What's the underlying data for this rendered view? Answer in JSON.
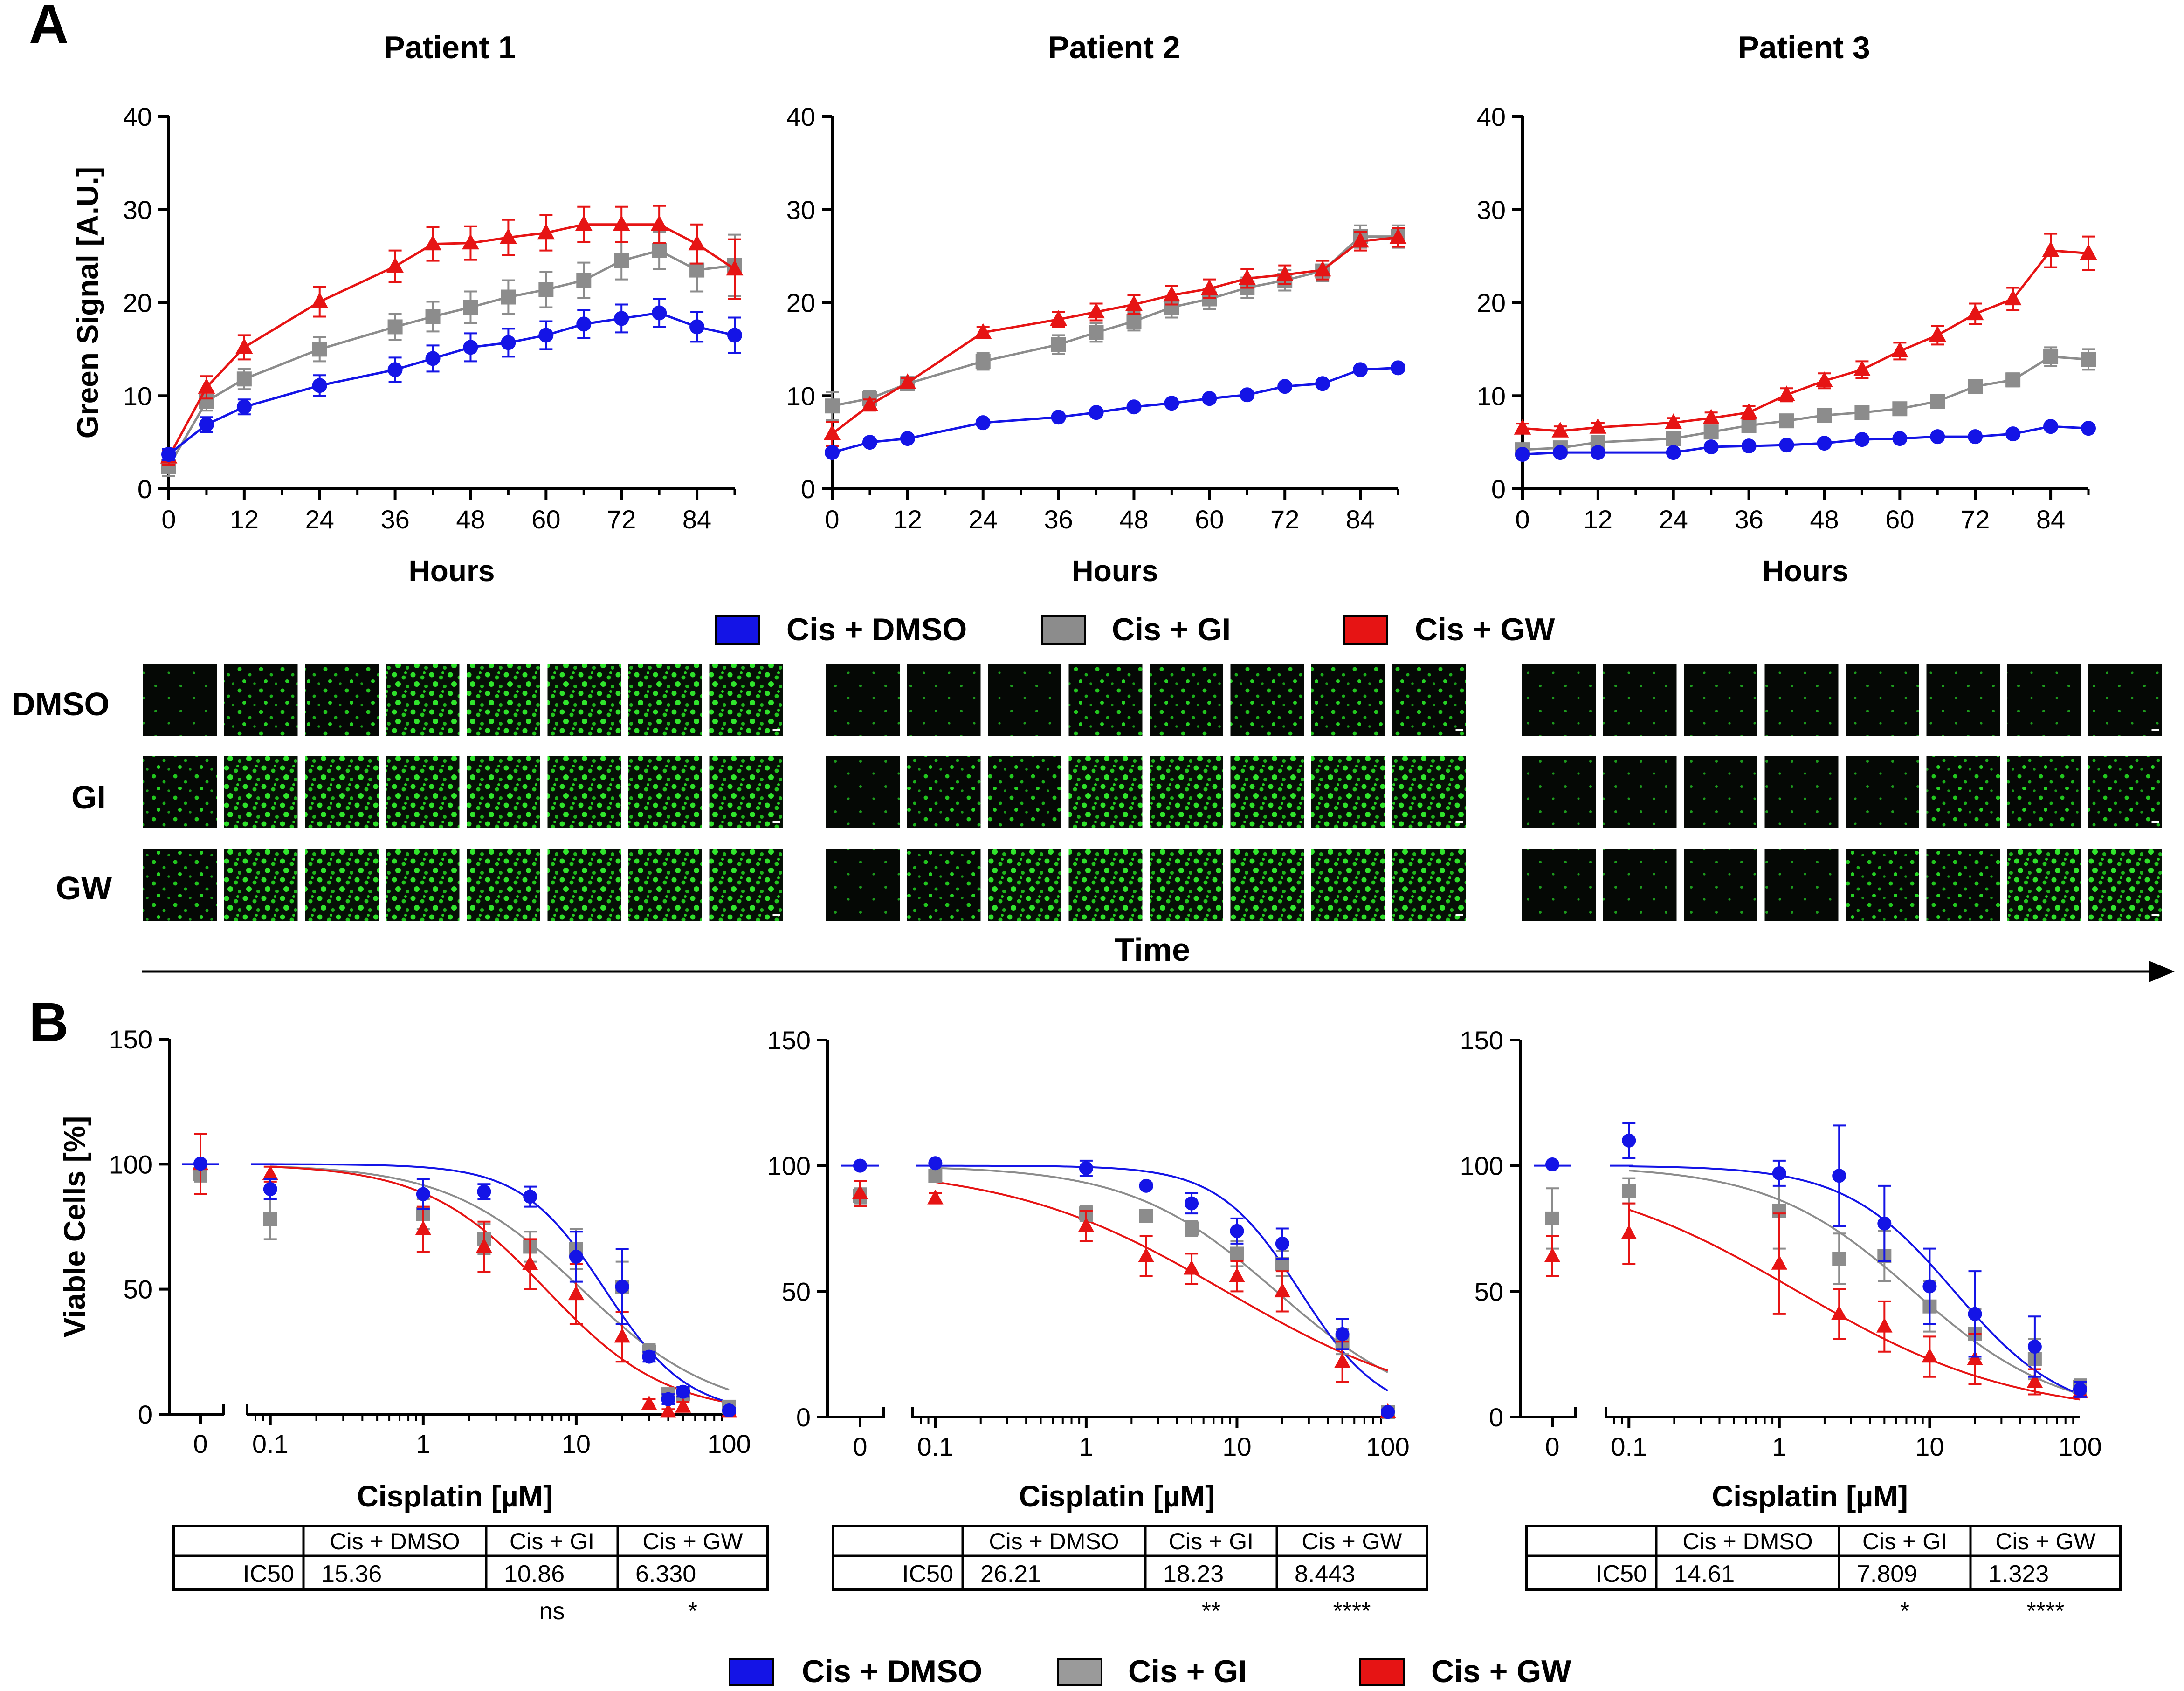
{
  "figure": {
    "panel_a_label": "A",
    "panel_b_label": "B",
    "time_label": "Time",
    "row_labels": [
      "DMSO",
      "GI",
      "GW"
    ],
    "legend": [
      {
        "label": "Cis + DMSO",
        "color": "#1414e6"
      },
      {
        "label": "Cis + GI",
        "color": "#8c8c8c"
      },
      {
        "label": "Cis + GW",
        "color": "#e61414"
      }
    ],
    "colors": {
      "dmso": "#1414e6",
      "gi": "#8c8c8c",
      "gw": "#e61414",
      "axis": "#000000",
      "micrograph_bg": "#050805",
      "micrograph_cells": "#22c61e"
    }
  },
  "chart_data": [
    {
      "type": "line",
      "title": "Patient 1",
      "xlabel": "Hours",
      "ylabel": "Green Signal [A.U.]",
      "xlim": [
        0,
        90
      ],
      "ylim": [
        0,
        40
      ],
      "xticks": [
        0,
        12,
        24,
        36,
        48,
        60,
        72,
        84
      ],
      "yticks": [
        0,
        10,
        20,
        30,
        40
      ],
      "series": [
        {
          "name": "Cis + DMSO",
          "marker": "circle",
          "x": [
            0,
            6,
            12,
            24,
            36,
            42,
            48,
            54,
            60,
            66,
            72,
            78,
            84,
            90
          ],
          "values": [
            3.7,
            6.9,
            8.8,
            11.1,
            12.8,
            14.0,
            15.2,
            15.7,
            16.5,
            17.7,
            18.3,
            18.9,
            17.4,
            16.5
          ],
          "errors": [
            0.6,
            0.8,
            0.8,
            1.1,
            1.3,
            1.4,
            1.5,
            1.5,
            1.5,
            1.5,
            1.5,
            1.5,
            1.6,
            1.9
          ]
        },
        {
          "name": "Cis + GI",
          "marker": "square",
          "x": [
            0,
            6,
            12,
            24,
            36,
            42,
            48,
            54,
            60,
            66,
            72,
            78,
            84,
            90
          ],
          "values": [
            2.4,
            9.4,
            11.8,
            15.0,
            17.4,
            18.5,
            19.5,
            20.6,
            21.4,
            22.4,
            24.5,
            25.6,
            23.5,
            24.0
          ],
          "errors": [
            1.0,
            1.0,
            1.1,
            1.3,
            1.4,
            1.6,
            1.7,
            1.8,
            1.9,
            1.9,
            2.0,
            2.0,
            2.3,
            3.3
          ]
        },
        {
          "name": "Cis + GW",
          "marker": "triangle",
          "x": [
            0,
            6,
            12,
            24,
            36,
            42,
            48,
            54,
            60,
            66,
            72,
            78,
            84,
            90
          ],
          "values": [
            3.4,
            10.9,
            15.2,
            20.1,
            23.9,
            26.3,
            26.4,
            27.0,
            27.5,
            28.4,
            28.4,
            28.4,
            26.3,
            23.6
          ],
          "errors": [
            0.8,
            1.2,
            1.3,
            1.6,
            1.7,
            1.8,
            1.8,
            1.9,
            1.9,
            1.9,
            1.9,
            2.0,
            2.1,
            3.2
          ]
        }
      ]
    },
    {
      "type": "line",
      "title": "Patient 2",
      "xlabel": "Hours",
      "ylabel": "",
      "xlim": [
        0,
        90
      ],
      "ylim": [
        0,
        40
      ],
      "xticks": [
        0,
        12,
        24,
        36,
        48,
        60,
        72,
        84
      ],
      "yticks": [
        0,
        10,
        20,
        30,
        40
      ],
      "series": [
        {
          "name": "Cis + DMSO",
          "marker": "circle",
          "x": [
            0,
            6,
            12,
            24,
            36,
            42,
            48,
            54,
            60,
            66,
            72,
            78,
            84,
            90
          ],
          "values": [
            3.9,
            5.0,
            5.4,
            7.1,
            7.7,
            8.2,
            8.8,
            9.2,
            9.7,
            10.1,
            11.0,
            11.3,
            12.8,
            13.0
          ],
          "errors": [
            0.3,
            0.3,
            0.3,
            0.3,
            0.3,
            0.3,
            0.3,
            0.3,
            0.3,
            0.3,
            0.3,
            0.3,
            0.3,
            0.3
          ]
        },
        {
          "name": "Cis + GI",
          "marker": "square",
          "x": [
            0,
            6,
            12,
            24,
            36,
            42,
            48,
            54,
            60,
            66,
            72,
            78,
            84,
            90
          ],
          "values": [
            8.9,
            9.7,
            11.3,
            13.7,
            15.5,
            16.8,
            18.0,
            19.5,
            20.4,
            21.6,
            22.4,
            23.4,
            27.1,
            27.1
          ],
          "errors": [
            1.5,
            0.8,
            0.7,
            0.9,
            1.0,
            1.0,
            1.0,
            1.1,
            1.1,
            1.1,
            1.1,
            1.1,
            1.2,
            1.2
          ]
        },
        {
          "name": "Cis + GW",
          "marker": "triangle",
          "x": [
            0,
            6,
            12,
            24,
            36,
            42,
            48,
            54,
            60,
            66,
            72,
            78,
            84,
            90
          ],
          "values": [
            5.9,
            9.0,
            11.4,
            16.8,
            18.2,
            19.0,
            19.8,
            20.8,
            21.5,
            22.6,
            23.0,
            23.5,
            26.6,
            27.0
          ],
          "errors": [
            1.3,
            0.6,
            0.5,
            0.6,
            0.8,
            0.9,
            1.0,
            1.0,
            1.0,
            1.0,
            1.0,
            1.0,
            1.0,
            1.0
          ]
        }
      ]
    },
    {
      "type": "line",
      "title": "Patient 3",
      "xlabel": "Hours",
      "ylabel": "",
      "xlim": [
        0,
        90
      ],
      "ylim": [
        0,
        40
      ],
      "xticks": [
        0,
        12,
        24,
        36,
        48,
        60,
        72,
        84
      ],
      "yticks": [
        0,
        10,
        20,
        30,
        40
      ],
      "series": [
        {
          "name": "Cis + DMSO",
          "marker": "circle",
          "x": [
            0,
            6,
            12,
            24,
            30,
            36,
            42,
            48,
            54,
            60,
            66,
            72,
            78,
            84,
            90
          ],
          "values": [
            3.7,
            3.9,
            3.9,
            3.9,
            4.5,
            4.6,
            4.7,
            4.9,
            5.3,
            5.4,
            5.6,
            5.6,
            5.9,
            6.7,
            6.5
          ],
          "errors": [
            0.3,
            0.3,
            0.3,
            0.3,
            0.3,
            0.3,
            0.3,
            0.3,
            0.3,
            0.3,
            0.3,
            0.3,
            0.3,
            0.3,
            0.3
          ]
        },
        {
          "name": "Cis + GI",
          "marker": "square",
          "x": [
            0,
            6,
            12,
            24,
            30,
            36,
            42,
            48,
            54,
            60,
            66,
            72,
            78,
            84,
            90
          ],
          "values": [
            4.2,
            4.4,
            5.0,
            5.4,
            6.1,
            6.8,
            7.3,
            7.9,
            8.2,
            8.6,
            9.4,
            11.0,
            11.7,
            14.2,
            13.9
          ],
          "errors": [
            0.4,
            0.4,
            0.4,
            0.5,
            0.5,
            0.5,
            0.5,
            0.5,
            0.5,
            0.5,
            0.5,
            0.6,
            0.7,
            1.0,
            1.1
          ]
        },
        {
          "name": "Cis + GW",
          "marker": "triangle",
          "x": [
            0,
            6,
            12,
            24,
            30,
            36,
            42,
            48,
            54,
            60,
            66,
            72,
            78,
            84,
            90
          ],
          "values": [
            6.5,
            6.2,
            6.6,
            7.1,
            7.6,
            8.2,
            10.1,
            11.6,
            12.8,
            14.8,
            16.5,
            18.8,
            20.4,
            25.6,
            25.3
          ],
          "errors": [
            0.5,
            0.5,
            0.5,
            0.5,
            0.6,
            0.7,
            0.7,
            0.8,
            0.9,
            0.9,
            1.0,
            1.1,
            1.2,
            1.8,
            1.8
          ]
        }
      ]
    },
    {
      "type": "scatter",
      "title": "",
      "xlabel": "Cisplatin [µM]",
      "ylabel": "Viable Cells [%]",
      "x_scale": "log",
      "xlim": [
        0.08,
        100
      ],
      "ylim": [
        0,
        150
      ],
      "x_zero_tick": "0",
      "xticks": [
        "0.1",
        "1",
        "10",
        "100"
      ],
      "yticks": [
        0,
        50,
        100,
        150
      ],
      "ic50_table": {
        "row_label": "IC50",
        "headers": [
          "Cis + DMSO",
          "Cis + GI",
          "Cis + GW"
        ],
        "values": [
          "15.36",
          "10.86",
          "6.330"
        ],
        "significance": [
          "",
          "ns",
          "*"
        ]
      },
      "series": [
        {
          "name": "Cis + DMSO",
          "marker": "circle",
          "zero": {
            "value": 100.2,
            "error": 0
          },
          "x": [
            0.1,
            1,
            2.5,
            5,
            10,
            20,
            30,
            40,
            50,
            100
          ],
          "values": [
            90,
            88,
            89,
            87,
            63,
            51,
            23,
            6,
            9,
            1.5
          ],
          "errors": [
            4,
            6,
            3,
            4,
            10,
            15,
            2,
            2,
            2,
            1
          ],
          "fit": {
            "ic50": 15.36,
            "hill": 1.6,
            "top": 100,
            "bottom": 0
          }
        },
        {
          "name": "Cis + GI",
          "marker": "square",
          "zero": {
            "value": 96,
            "error": 3
          },
          "x": [
            0.1,
            1,
            2.5,
            5,
            10,
            20,
            30,
            40,
            50,
            100
          ],
          "values": [
            78,
            80,
            70,
            67,
            66,
            51,
            25,
            8,
            8,
            3
          ],
          "errors": [
            8,
            6,
            6,
            6,
            8,
            10,
            3,
            2,
            2,
            1
          ],
          "fit": {
            "ic50": 10.86,
            "hill": 1.0,
            "top": 100,
            "bottom": 0
          }
        },
        {
          "name": "Cis + GW",
          "marker": "triangle",
          "zero": {
            "value": 100,
            "error": 12
          },
          "x": [
            0.1,
            1,
            2.5,
            5,
            10,
            20,
            30,
            40,
            50,
            100
          ],
          "values": [
            96,
            74,
            67,
            60,
            48,
            31,
            4,
            1,
            3,
            1
          ],
          "errors": [
            3,
            9,
            10,
            10,
            12,
            10,
            2,
            1,
            2,
            1
          ],
          "fit": {
            "ic50": 6.33,
            "hill": 1.1,
            "top": 100,
            "bottom": 0
          }
        }
      ]
    },
    {
      "type": "scatter",
      "title": "",
      "xlabel": "Cisplatin [µM]",
      "ylabel": "",
      "x_scale": "log",
      "xlim": [
        0.08,
        100
      ],
      "ylim": [
        0,
        150
      ],
      "x_zero_tick": "0",
      "xticks": [
        "0.1",
        "1",
        "10",
        "100"
      ],
      "yticks": [
        0,
        50,
        100,
        150
      ],
      "ic50_table": {
        "row_label": "IC50",
        "headers": [
          "Cis + DMSO",
          "Cis + GI",
          "Cis + GW"
        ],
        "values": [
          "26.21",
          "18.23",
          "8.443"
        ],
        "significance": [
          "",
          "**",
          "****"
        ]
      },
      "series": [
        {
          "name": "Cis + DMSO",
          "marker": "circle",
          "zero": {
            "value": 100,
            "error": 0
          },
          "x": [
            0.1,
            1,
            2.5,
            5,
            10,
            20,
            50,
            100
          ],
          "values": [
            101,
            99,
            92,
            85,
            74,
            69,
            33,
            2
          ],
          "errors": [
            1,
            3,
            1,
            4,
            5,
            6,
            6,
            1
          ],
          "fit": {
            "ic50": 26.21,
            "hill": 1.6,
            "top": 100,
            "bottom": 0
          }
        },
        {
          "name": "Cis + GI",
          "marker": "square",
          "zero": {
            "value": 88,
            "error": 3
          },
          "x": [
            0.1,
            1,
            2.5,
            5,
            10,
            20,
            50,
            100
          ],
          "values": [
            96,
            81,
            80,
            75,
            65,
            61,
            30,
            2
          ],
          "errors": [
            2,
            3,
            2,
            3,
            5,
            5,
            5,
            1
          ],
          "fit": {
            "ic50": 18.23,
            "hill": 0.9,
            "top": 100,
            "bottom": 0
          }
        },
        {
          "name": "Cis + GW",
          "marker": "triangle",
          "zero": {
            "value": 89,
            "error": 5
          },
          "x": [
            0.1,
            1,
            2.5,
            5,
            10,
            20,
            50,
            100
          ],
          "values": [
            87,
            76,
            64,
            59,
            56,
            50,
            22,
            2
          ],
          "errors": [
            2,
            6,
            8,
            6,
            6,
            8,
            8,
            1
          ],
          "fit": {
            "ic50": 8.443,
            "hill": 0.6,
            "top": 100,
            "bottom": 0
          }
        }
      ]
    },
    {
      "type": "scatter",
      "title": "",
      "xlabel": "Cisplatin [µM]",
      "ylabel": "",
      "x_scale": "log",
      "xlim": [
        0.08,
        100
      ],
      "ylim": [
        0,
        150
      ],
      "x_zero_tick": "0",
      "xticks": [
        "0.1",
        "1",
        "10",
        "100"
      ],
      "yticks": [
        0,
        50,
        100,
        150
      ],
      "ic50_table": {
        "row_label": "IC50",
        "headers": [
          "Cis + DMSO",
          "Cis + GI",
          "Cis + GW"
        ],
        "values": [
          "14.61",
          "7.809",
          "1.323"
        ],
        "significance": [
          "",
          "*",
          "****"
        ]
      },
      "series": [
        {
          "name": "Cis + DMSO",
          "marker": "circle",
          "zero": {
            "value": 100.5,
            "error": 0
          },
          "x": [
            0.1,
            1,
            2.5,
            5,
            10,
            20,
            50,
            100
          ],
          "values": [
            110,
            97,
            96,
            77,
            52,
            41,
            28,
            11
          ],
          "errors": [
            7,
            5,
            20,
            15,
            15,
            17,
            12,
            3
          ],
          "fit": {
            "ic50": 14.61,
            "hill": 1.2,
            "top": 100,
            "bottom": 0
          }
        },
        {
          "name": "Cis + GI",
          "marker": "square",
          "zero": {
            "value": 79,
            "error": 12
          },
          "x": [
            0.1,
            1,
            2.5,
            5,
            10,
            20,
            50,
            100
          ],
          "values": [
            90,
            82,
            63,
            64,
            44,
            33,
            23,
            12
          ],
          "errors": [
            5,
            15,
            10,
            10,
            10,
            10,
            8,
            3
          ],
          "fit": {
            "ic50": 7.809,
            "hill": 0.9,
            "top": 100,
            "bottom": 0
          }
        },
        {
          "name": "Cis + GW",
          "marker": "triangle",
          "zero": {
            "value": 64,
            "error": 8
          },
          "x": [
            0.1,
            1,
            2.5,
            5,
            10,
            20,
            50,
            100
          ],
          "values": [
            73,
            61,
            41,
            36,
            24,
            23,
            14,
            10
          ],
          "errors": [
            12,
            20,
            10,
            10,
            8,
            10,
            5,
            2
          ],
          "fit": {
            "ic50": 1.323,
            "hill": 0.6,
            "top": 100,
            "bottom": 0
          }
        }
      ]
    }
  ]
}
